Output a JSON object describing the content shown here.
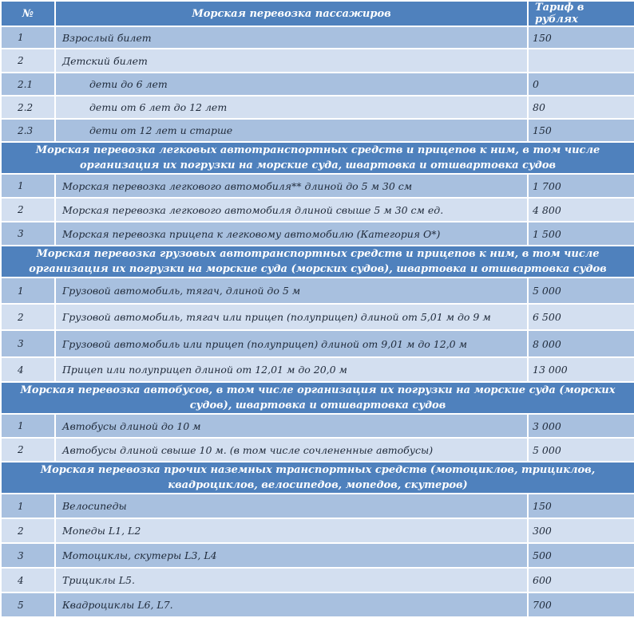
{
  "header": {
    "no": "№",
    "title": "Морская перевозка пассажиров",
    "tariff": "Тариф в рублях"
  },
  "colors": {
    "header": "#4f81bd",
    "row_dark": "#a8c0df",
    "row_light": "#d3dff0"
  },
  "sections": [
    {
      "title": "",
      "rows": [
        {
          "no": "1",
          "desc": "Взрослый билет",
          "price": "150",
          "indent": false
        },
        {
          "no": "2",
          "desc": "Детский билет",
          "price": "",
          "indent": false
        },
        {
          "no": "2.1",
          "desc": "дети до 6 лет",
          "price": "0",
          "indent": true
        },
        {
          "no": "2.2",
          "desc": "дети от 6 лет до 12 лет",
          "price": "80",
          "indent": true
        },
        {
          "no": "2.3",
          "desc": "дети от 12 лет и старше",
          "price": "150",
          "indent": true
        }
      ]
    },
    {
      "title": "Морская перевозка легковых автотранспортных средств и прицепов к ним, в том числе организация их погрузки на морские суда, швартовка и отшвартовка судов",
      "rows": [
        {
          "no": "1",
          "desc": "Морская перевозка легкового автомобиля** длиной до 5 м 30 см",
          "price": "1 700"
        },
        {
          "no": "2",
          "desc": "Морская перевозка легкового автомобиля длиной свыше 5 м 30 см ед.",
          "price": "4 800"
        },
        {
          "no": "3",
          "desc": "Морская перевозка прицепа к легковому автомобилю (Категория О*)",
          "price": "1 500"
        }
      ]
    },
    {
      "title": "Морская перевозка грузовых автотранспортных средств и прицепов к ним, в том числе организация их погрузки на морские суда (морских судов), швартовка и отшвартовка судов",
      "rows": [
        {
          "no": "1",
          "desc": "Грузовой автомобиль, тягач, длиной  до 5 м",
          "price": "5 000"
        },
        {
          "no": "2",
          "desc": "Грузовой автомобиль, тягач или прицеп (полуприцеп) длиной от 5,01 м до 9 м",
          "price": "6 500"
        },
        {
          "no": "3",
          "desc": "Грузовой автомобиль или прицеп (полуприцеп) длиной от 9,01 м до 12,0 м",
          "price": "8 000"
        },
        {
          "no": "4",
          "desc": "Прицеп или полуприцеп длиной от 12,01 м до 20,0 м",
          "price": "13 000"
        }
      ]
    },
    {
      "title": "Морская перевозка автобусов, в том числе организация их погрузки на морские суда (морских судов), швартовка и отшвартовка судов",
      "rows": [
        {
          "no": "1",
          "desc": "Автобусы длиной до 10 м",
          "price": "3 000"
        },
        {
          "no": "2",
          "desc": "Автобусы длиной свыше 10 м. (в том числе сочлененные автобусы)",
          "price": "5 000"
        }
      ]
    },
    {
      "title": "Морская перевозка прочих наземных транспортных средств (мотоциклов, трициклов, квадроциклов, велосипедов, мопедов, скутеров)",
      "rows": [
        {
          "no": "1",
          "desc": "Велосипеды",
          "price": "150"
        },
        {
          "no": "2",
          "desc": "Мопеды L1, L2",
          "price": "300"
        },
        {
          "no": "3",
          "desc": "Мотоциклы, скутеры L3, L4",
          "price": "500"
        },
        {
          "no": "4",
          "desc": "Трициклы L5.",
          "price": "600"
        },
        {
          "no": "5",
          "desc": "Квадроциклы L6, L7.",
          "price": "700"
        }
      ]
    }
  ]
}
